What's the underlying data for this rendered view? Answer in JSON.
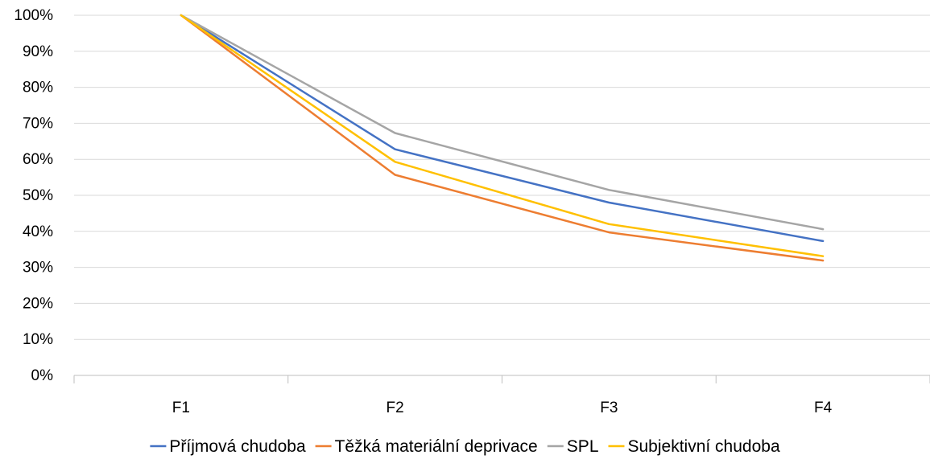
{
  "chart_data": {
    "type": "line",
    "title": "",
    "xlabel": "",
    "ylabel": "",
    "categories": [
      "F1",
      "F2",
      "F3",
      "F4"
    ],
    "ylim": [
      0,
      100
    ],
    "y_ticks": [
      "0%",
      "10%",
      "20%",
      "30%",
      "40%",
      "50%",
      "60%",
      "70%",
      "80%",
      "90%",
      "100%"
    ],
    "y_unit": "%",
    "grid": true,
    "legend_position": "bottom",
    "series": [
      {
        "name": "Příjmová chudoba",
        "color": "#4472c4",
        "values": [
          100,
          62.8,
          48.0,
          37.3
        ]
      },
      {
        "name": "Těžká materiální deprivace",
        "color": "#ed7d31",
        "values": [
          100,
          55.7,
          39.7,
          31.9
        ]
      },
      {
        "name": "SPL",
        "color": "#a5a5a5",
        "values": [
          100,
          67.3,
          51.5,
          40.6
        ]
      },
      {
        "name": "Subjektivní chudoba",
        "color": "#ffc000",
        "values": [
          100,
          59.3,
          42.0,
          33.1
        ]
      }
    ]
  }
}
